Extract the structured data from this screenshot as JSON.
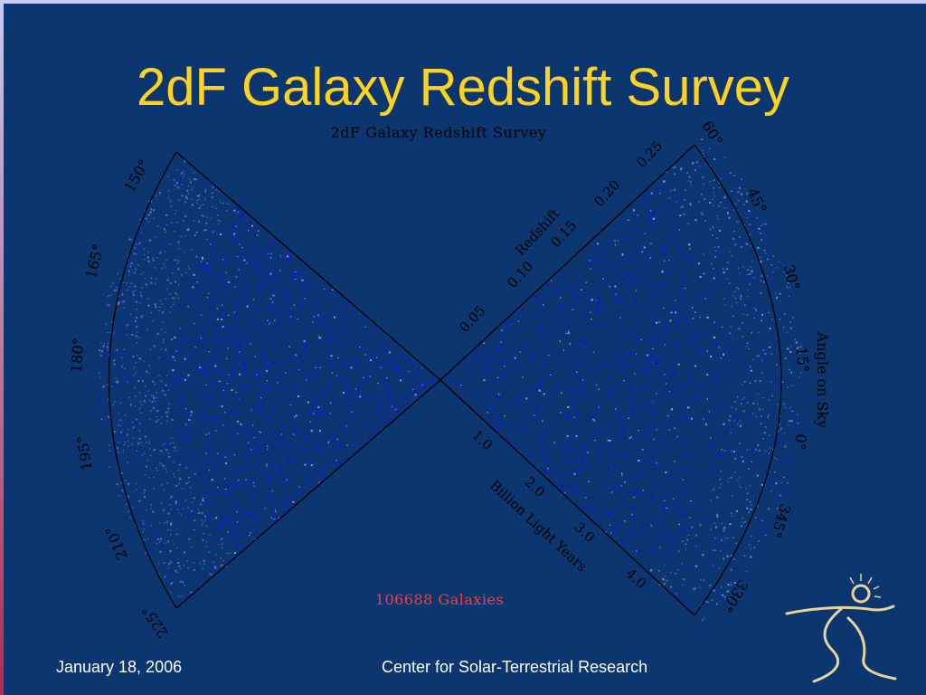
{
  "slide": {
    "title": "2dF Galaxy Redshift Survey",
    "footer_date": "January 18, 2006",
    "footer_org": "Center for Solar-Terrestrial Research"
  },
  "figure": {
    "title": "2dF Galaxy Redshift Survey",
    "galaxy_count_label": "106688 Galaxies",
    "redshift_axis_label": "Redshift",
    "distance_axis_label": "Billion Light Years",
    "angle_axis_label": "Angle on Sky",
    "redshift_ticks": [
      "0.05",
      "0.10",
      "0.15",
      "0.20",
      "0.25"
    ],
    "distance_ticks": [
      "1.0",
      "2.0",
      "3.0",
      "4.0"
    ],
    "right_angle_ticks": [
      "60°",
      "45°",
      "30°",
      "15°",
      "0°",
      "345°",
      "330°"
    ],
    "left_angle_ticks": [
      "150°",
      "165°",
      "180°",
      "195°",
      "210°",
      "225°"
    ]
  },
  "colors": {
    "background": "#0b3670",
    "title": "#ffd21f",
    "galaxies_dense": "#1010ff",
    "galaxies_sparse": "#9d9dff",
    "count_label": "#ff3b3b",
    "frame_lines": "#000000"
  }
}
